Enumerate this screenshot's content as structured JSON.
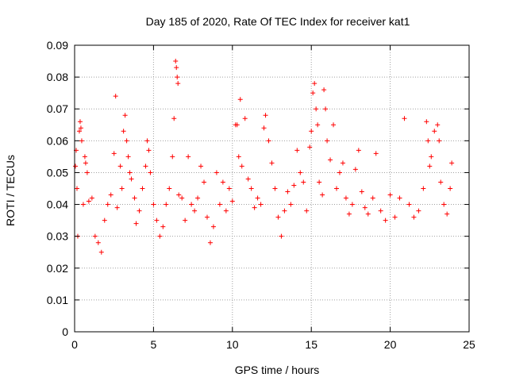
{
  "chart_data": {
    "type": "scatter",
    "title": "Day 185 of 2020, Rate Of TEC Index for receiver kat1",
    "xlabel": "GPS time / hours",
    "ylabel": "ROTI / TECUs",
    "xlim": [
      0,
      25
    ],
    "ylim": [
      0,
      0.09
    ],
    "xticks": [
      "0",
      "5",
      "10",
      "15",
      "20",
      "25"
    ],
    "yticks": [
      "0",
      "0.01",
      "0.02",
      "0.03",
      "0.04",
      "0.05",
      "0.06",
      "0.07",
      "0.08",
      "0.09"
    ],
    "grid": true,
    "marker": "plus",
    "color": "#ff0000",
    "series": [
      {
        "points": [
          [
            0.05,
            0.052
          ],
          [
            0.1,
            0.057
          ],
          [
            0.15,
            0.045
          ],
          [
            0.2,
            0.03
          ],
          [
            0.3,
            0.063
          ],
          [
            0.35,
            0.066
          ],
          [
            0.4,
            0.064
          ],
          [
            0.45,
            0.06
          ],
          [
            0.55,
            0.04
          ],
          [
            0.65,
            0.055
          ],
          [
            0.7,
            0.053
          ],
          [
            0.8,
            0.05
          ],
          [
            0.9,
            0.041
          ],
          [
            1.1,
            0.042
          ],
          [
            1.3,
            0.03
          ],
          [
            1.5,
            0.028
          ],
          [
            1.7,
            0.025
          ],
          [
            1.9,
            0.035
          ],
          [
            2.1,
            0.04
          ],
          [
            2.3,
            0.043
          ],
          [
            2.5,
            0.056
          ],
          [
            2.6,
            0.074
          ],
          [
            2.7,
            0.039
          ],
          [
            2.9,
            0.052
          ],
          [
            3.0,
            0.045
          ],
          [
            3.1,
            0.063
          ],
          [
            3.2,
            0.068
          ],
          [
            3.3,
            0.06
          ],
          [
            3.4,
            0.055
          ],
          [
            3.5,
            0.05
          ],
          [
            3.6,
            0.048
          ],
          [
            3.8,
            0.042
          ],
          [
            3.9,
            0.034
          ],
          [
            4.1,
            0.038
          ],
          [
            4.3,
            0.045
          ],
          [
            4.5,
            0.052
          ],
          [
            4.6,
            0.06
          ],
          [
            4.7,
            0.057
          ],
          [
            4.8,
            0.05
          ],
          [
            5.0,
            0.04
          ],
          [
            5.2,
            0.035
          ],
          [
            5.4,
            0.03
          ],
          [
            5.6,
            0.033
          ],
          [
            5.8,
            0.04
          ],
          [
            6.0,
            0.045
          ],
          [
            6.2,
            0.055
          ],
          [
            6.3,
            0.067
          ],
          [
            6.4,
            0.085
          ],
          [
            6.45,
            0.083
          ],
          [
            6.5,
            0.08
          ],
          [
            6.55,
            0.078
          ],
          [
            6.6,
            0.043
          ],
          [
            6.8,
            0.042
          ],
          [
            7.0,
            0.035
          ],
          [
            7.2,
            0.055
          ],
          [
            7.4,
            0.04
          ],
          [
            7.6,
            0.038
          ],
          [
            7.8,
            0.042
          ],
          [
            8.0,
            0.052
          ],
          [
            8.2,
            0.047
          ],
          [
            8.4,
            0.036
          ],
          [
            8.6,
            0.028
          ],
          [
            8.8,
            0.033
          ],
          [
            9.0,
            0.05
          ],
          [
            9.2,
            0.04
          ],
          [
            9.4,
            0.047
          ],
          [
            9.6,
            0.038
          ],
          [
            9.8,
            0.045
          ],
          [
            10.0,
            0.041
          ],
          [
            10.2,
            0.065
          ],
          [
            10.3,
            0.065
          ],
          [
            10.4,
            0.055
          ],
          [
            10.5,
            0.073
          ],
          [
            10.6,
            0.052
          ],
          [
            10.8,
            0.067
          ],
          [
            11.0,
            0.048
          ],
          [
            11.2,
            0.045
          ],
          [
            11.4,
            0.039
          ],
          [
            11.6,
            0.042
          ],
          [
            11.8,
            0.04
          ],
          [
            12.0,
            0.064
          ],
          [
            12.1,
            0.068
          ],
          [
            12.3,
            0.06
          ],
          [
            12.5,
            0.053
          ],
          [
            12.7,
            0.045
          ],
          [
            12.9,
            0.036
          ],
          [
            13.1,
            0.03
          ],
          [
            13.3,
            0.038
          ],
          [
            13.5,
            0.044
          ],
          [
            13.7,
            0.04
          ],
          [
            13.9,
            0.046
          ],
          [
            14.1,
            0.057
          ],
          [
            14.3,
            0.05
          ],
          [
            14.5,
            0.047
          ],
          [
            14.7,
            0.038
          ],
          [
            14.9,
            0.058
          ],
          [
            15.0,
            0.063
          ],
          [
            15.1,
            0.075
          ],
          [
            15.2,
            0.078
          ],
          [
            15.3,
            0.07
          ],
          [
            15.4,
            0.065
          ],
          [
            15.5,
            0.047
          ],
          [
            15.7,
            0.043
          ],
          [
            15.8,
            0.076
          ],
          [
            15.9,
            0.07
          ],
          [
            16.0,
            0.06
          ],
          [
            16.2,
            0.054
          ],
          [
            16.4,
            0.065
          ],
          [
            16.6,
            0.045
          ],
          [
            16.8,
            0.05
          ],
          [
            17.0,
            0.053
          ],
          [
            17.2,
            0.042
          ],
          [
            17.4,
            0.037
          ],
          [
            17.6,
            0.04
          ],
          [
            17.8,
            0.051
          ],
          [
            18.0,
            0.057
          ],
          [
            18.2,
            0.044
          ],
          [
            18.4,
            0.039
          ],
          [
            18.6,
            0.037
          ],
          [
            18.9,
            0.042
          ],
          [
            19.1,
            0.056
          ],
          [
            19.4,
            0.038
          ],
          [
            19.7,
            0.035
          ],
          [
            20.0,
            0.043
          ],
          [
            20.3,
            0.036
          ],
          [
            20.6,
            0.042
          ],
          [
            20.9,
            0.067
          ],
          [
            21.2,
            0.04
          ],
          [
            21.5,
            0.036
          ],
          [
            21.8,
            0.038
          ],
          [
            22.1,
            0.045
          ],
          [
            22.3,
            0.066
          ],
          [
            22.4,
            0.06
          ],
          [
            22.5,
            0.052
          ],
          [
            22.6,
            0.055
          ],
          [
            22.8,
            0.063
          ],
          [
            23.0,
            0.065
          ],
          [
            23.1,
            0.06
          ],
          [
            23.2,
            0.047
          ],
          [
            23.4,
            0.04
          ],
          [
            23.6,
            0.037
          ],
          [
            23.8,
            0.045
          ],
          [
            23.9,
            0.053
          ]
        ]
      }
    ]
  }
}
